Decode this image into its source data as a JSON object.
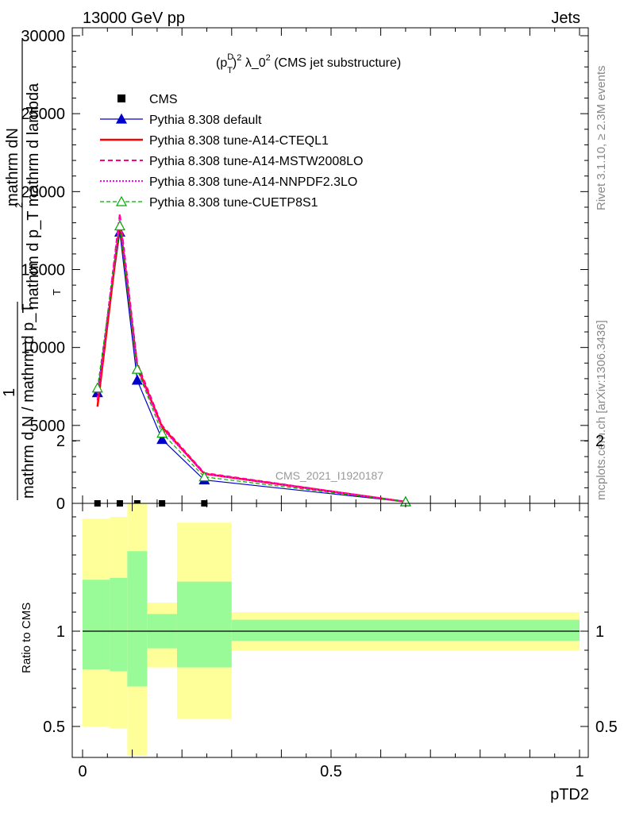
{
  "header": {
    "energy_label": "13000 GeV pp",
    "process_label": "Jets"
  },
  "sidebar": {
    "rivet_label": "Rivet 3.1.10, ≥ 2.3M events",
    "site_label": "mcplots.cern.ch [arXiv:1306.3436]"
  },
  "chart_data": [
    {
      "type": "line",
      "title_parts": {
        "base": "(p",
        "sup1": "D",
        "sub1": "T",
        "sup2": "2",
        "rest": " λ_0",
        "sup3": "2",
        "tail": " (CMS jet substructure)"
      },
      "ylabel_lines": [
        "mathrm dN",
        "mathrm d p_T mathrm d lambda",
        "1",
        "mathrm d N / mathrm d p_T"
      ],
      "ylabel_sub_t": "T",
      "ylabel_sub_2": "2",
      "analysis_id": "CMS_2021_I1920187",
      "xlim": [
        0,
        1
      ],
      "ylim": [
        0,
        30000
      ],
      "yticks": [
        0,
        5000,
        10000,
        15000,
        20000,
        25000,
        30000
      ],
      "ytick_labels": [
        "0",
        "5000",
        "10000",
        "15000",
        "20000",
        "25000",
        "30000"
      ],
      "legend_position": "top-left",
      "series": [
        {
          "name": "CMS",
          "color": "#000000",
          "style": "points",
          "x": [
            0.03,
            0.075,
            0.11,
            0.16,
            0.245
          ],
          "y": [
            0,
            0,
            0,
            0,
            0
          ]
        },
        {
          "name": "Pythia 8.308 default",
          "color": "#0000cc",
          "style": "solid-triangle",
          "x": [
            0.03,
            0.075,
            0.11,
            0.16,
            0.245,
            0.65
          ],
          "y": [
            7100,
            17400,
            7900,
            4100,
            1500,
            100
          ]
        },
        {
          "name": "Pythia 8.308 tune-A14-CTEQL1",
          "color": "#ff0000",
          "style": "solid-thick",
          "x": [
            0.03,
            0.075,
            0.11,
            0.16,
            0.245,
            0.65
          ],
          "y": [
            6200,
            18000,
            8800,
            4900,
            1900,
            100
          ]
        },
        {
          "name": "Pythia 8.308 tune-A14-MSTW2008LO",
          "color": "#ff0080",
          "style": "dashed",
          "x": [
            0.03,
            0.075,
            0.11,
            0.16,
            0.245,
            0.65
          ],
          "y": [
            6600,
            18600,
            9000,
            5000,
            1950,
            100
          ]
        },
        {
          "name": "Pythia 8.308 tune-A14-NNPDF2.3LO",
          "color": "#ff00ff",
          "style": "dotted",
          "x": [
            0.03,
            0.075,
            0.11,
            0.16,
            0.245,
            0.65
          ],
          "y": [
            6800,
            18400,
            8700,
            4800,
            1900,
            100
          ]
        },
        {
          "name": "Pythia 8.308 tune-CUETP8S1",
          "color": "#00aa00",
          "style": "dashed-triangle",
          "x": [
            0.03,
            0.075,
            0.11,
            0.16,
            0.245,
            0.65
          ],
          "y": [
            7400,
            17800,
            8600,
            4500,
            1700,
            100
          ]
        }
      ]
    },
    {
      "type": "area",
      "ylabel": "Ratio to CMS",
      "xlabel": "pTD2",
      "xlim": [
        0,
        1
      ],
      "ylim": [
        0.35,
        2.25
      ],
      "xticks": [
        0,
        0.5,
        1
      ],
      "xtick_labels": [
        "0",
        "0.5",
        "1"
      ],
      "yticks": [
        0.5,
        1,
        2
      ],
      "ytick_labels": [
        "0.5",
        "1",
        "2"
      ],
      "reference_line": 1,
      "band_colors": {
        "inner": "#98fb98",
        "outer": "#ffff99"
      },
      "bins": [
        {
          "lo": 0.0,
          "hi": 0.055,
          "inner": [
            0.8,
            1.27
          ],
          "outer": [
            0.5,
            1.59
          ]
        },
        {
          "lo": 0.055,
          "hi": 0.09,
          "inner": [
            0.79,
            1.28
          ],
          "outer": [
            0.49,
            1.6
          ]
        },
        {
          "lo": 0.09,
          "hi": 0.13,
          "inner": [
            0.71,
            1.42
          ],
          "outer": [
            0.35,
            1.75
          ]
        },
        {
          "lo": 0.13,
          "hi": 0.19,
          "inner": [
            0.91,
            1.09
          ],
          "outer": [
            0.81,
            1.15
          ]
        },
        {
          "lo": 0.19,
          "hi": 0.3,
          "inner": [
            0.81,
            1.26
          ],
          "outer": [
            0.54,
            1.57
          ]
        },
        {
          "lo": 0.3,
          "hi": 1.0,
          "inner": [
            0.95,
            1.06
          ],
          "outer": [
            0.9,
            1.1
          ]
        }
      ]
    }
  ]
}
